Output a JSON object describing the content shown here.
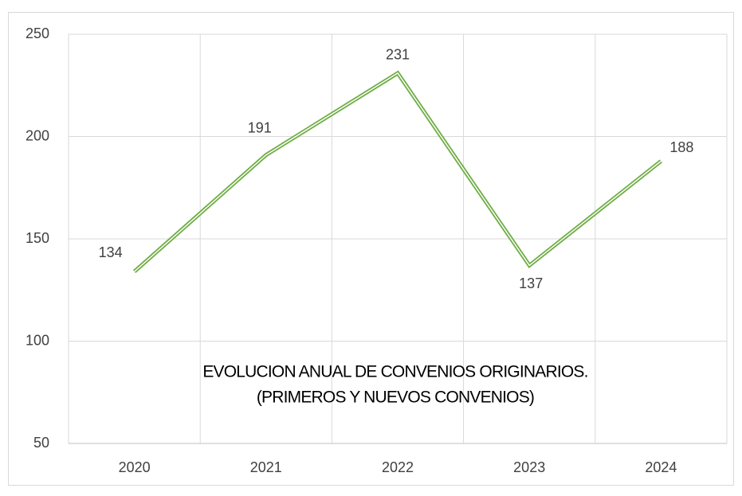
{
  "chart_data": {
    "type": "line",
    "title": [
      "EVOLUCION ANUAL DE CONVENIOS ORIGINARIOS.",
      "(PRIMEROS Y NUEVOS CONVENIOS)"
    ],
    "categories": [
      "2020",
      "2021",
      "2022",
      "2023",
      "2024"
    ],
    "values": [
      134,
      191,
      231,
      137,
      188
    ],
    "color": "#70ad47",
    "ylim": [
      50,
      250
    ],
    "yticks": [
      50,
      100,
      150,
      200,
      250
    ],
    "grid": true
  }
}
